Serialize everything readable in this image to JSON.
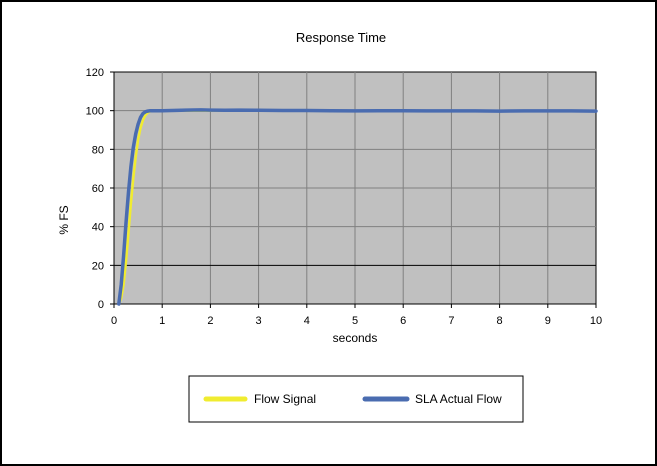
{
  "chart_data": {
    "type": "line",
    "title": "Response Time",
    "xlabel": "seconds",
    "ylabel": "% FS",
    "xlim": [
      0,
      10
    ],
    "ylim": [
      0,
      120
    ],
    "x_ticks": [
      0,
      1,
      2,
      3,
      4,
      5,
      6,
      7,
      8,
      9,
      10
    ],
    "y_ticks": [
      0,
      20,
      40,
      60,
      80,
      100,
      120
    ],
    "grid": true,
    "plot_background": "#c0c0c0",
    "legend_position": "bottom-center",
    "series": [
      {
        "name": "Flow Signal",
        "color": "#f0ec30",
        "x": [
          0.1,
          0.15,
          0.2,
          0.25,
          0.3,
          0.35,
          0.4,
          0.45,
          0.5,
          0.55,
          0.6,
          0.65,
          0.7,
          0.75,
          0.8,
          0.9,
          1.0,
          1.5,
          2.0,
          3.0,
          4.0,
          5.0,
          6.0,
          7.0,
          8.0,
          9.0,
          10.0
        ],
        "values": [
          0,
          3,
          10,
          22,
          37,
          52,
          65,
          76,
          85,
          91,
          95,
          97.5,
          99,
          99.6,
          100,
          100,
          100,
          100,
          100,
          100,
          100,
          100,
          100,
          100,
          100,
          100,
          100
        ]
      },
      {
        "name": "SLA Actual Flow",
        "color": "#4a6cb0",
        "x": [
          0.1,
          0.15,
          0.2,
          0.25,
          0.3,
          0.35,
          0.4,
          0.45,
          0.5,
          0.55,
          0.6,
          0.65,
          0.7,
          0.75,
          0.8,
          0.9,
          1.0,
          1.2,
          1.5,
          1.8,
          2.0,
          2.3,
          2.6,
          3.0,
          3.5,
          4.0,
          4.5,
          5.0,
          5.5,
          6.0,
          6.5,
          7.0,
          7.5,
          8.0,
          8.5,
          9.0,
          9.5,
          10.0
        ],
        "values": [
          0,
          10,
          25,
          42,
          58,
          71,
          81,
          88,
          93,
          96.5,
          98.5,
          99.4,
          99.8,
          100,
          100,
          100,
          100,
          100.1,
          100.3,
          100.4,
          100.3,
          100.2,
          100.3,
          100.2,
          100.1,
          100.1,
          100,
          99.9,
          100,
          100,
          99.9,
          99.9,
          99.9,
          99.8,
          99.9,
          99.9,
          99.9,
          99.8
        ]
      }
    ]
  }
}
